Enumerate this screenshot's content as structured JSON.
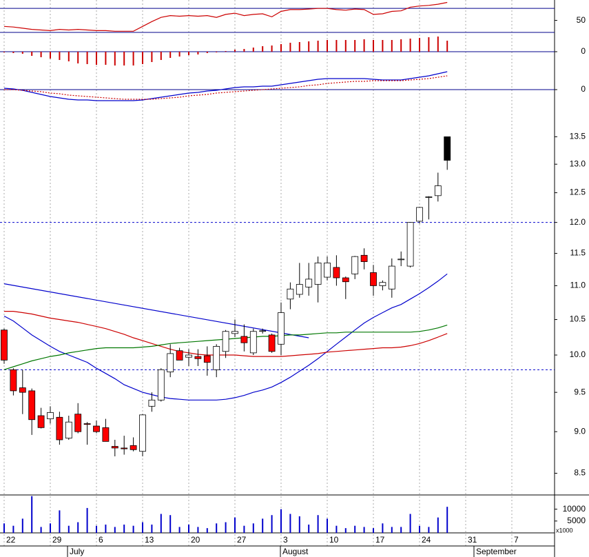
{
  "chart_data": [
    {
      "type": "line",
      "ylim": [
        30,
        84
      ],
      "yticks": [
        50
      ],
      "hlines": [
        70,
        30
      ],
      "hline_color": "#00008b",
      "series": [
        {
          "color": "#cc0000",
          "values": [
            40,
            39,
            37,
            35,
            34,
            33,
            35,
            34,
            35,
            34,
            33,
            33,
            32,
            32,
            32,
            40,
            48,
            55,
            58,
            57,
            58,
            57,
            58,
            55,
            60,
            62,
            58,
            60,
            61,
            56,
            65,
            68,
            68,
            69,
            70,
            70,
            68,
            67,
            69,
            68,
            60,
            61,
            65,
            66,
            72,
            74,
            75,
            77,
            80
          ]
        }
      ]
    },
    {
      "type": "bar",
      "ylim": [
        -0.25,
        0.28
      ],
      "yticks": [
        0
      ],
      "hlines": [
        0
      ],
      "hline_color": "#00008b",
      "color": "#cc0000",
      "values": [
        -0.01,
        -0.02,
        -0.03,
        -0.06,
        -0.08,
        -0.1,
        -0.12,
        -0.14,
        -0.17,
        -0.18,
        -0.19,
        -0.19,
        -0.2,
        -0.2,
        -0.2,
        -0.18,
        -0.15,
        -0.12,
        -0.09,
        -0.07,
        -0.05,
        -0.04,
        -0.02,
        -0.01,
        0.01,
        0.03,
        0.04,
        0.06,
        0.08,
        0.09,
        0.11,
        0.13,
        0.14,
        0.15,
        0.16,
        0.17,
        0.17,
        0.17,
        0.17,
        0.18,
        0.17,
        0.17,
        0.17,
        0.18,
        0.19,
        0.2,
        0.21,
        0.22,
        0.16
      ]
    },
    {
      "type": "line",
      "ylim": [
        -0.3,
        0.3
      ],
      "yticks": [
        0
      ],
      "hlines": [
        0
      ],
      "hline_color": "#00008b",
      "series": [
        {
          "color": "#0000cc",
          "values": [
            0.02,
            0.01,
            -0.01,
            -0.04,
            -0.07,
            -0.1,
            -0.12,
            -0.14,
            -0.15,
            -0.15,
            -0.16,
            -0.16,
            -0.16,
            -0.16,
            -0.16,
            -0.15,
            -0.13,
            -0.11,
            -0.09,
            -0.07,
            -0.05,
            -0.04,
            -0.02,
            -0.01,
            0.01,
            0.03,
            0.04,
            0.04,
            0.05,
            0.05,
            0.07,
            0.09,
            0.11,
            0.13,
            0.15,
            0.16,
            0.16,
            0.16,
            0.16,
            0.16,
            0.15,
            0.14,
            0.14,
            0.14,
            0.16,
            0.18,
            0.2,
            0.23,
            0.26
          ]
        },
        {
          "color": "#cc0000",
          "dash": true,
          "values": [
            0,
            0,
            -0.01,
            -0.02,
            -0.03,
            -0.05,
            -0.06,
            -0.08,
            -0.09,
            -0.1,
            -0.11,
            -0.12,
            -0.13,
            -0.14,
            -0.14,
            -0.14,
            -0.14,
            -0.13,
            -0.12,
            -0.11,
            -0.09,
            -0.08,
            -0.07,
            -0.05,
            -0.04,
            -0.03,
            -0.02,
            -0.01,
            0,
            0.01,
            0.02,
            0.03,
            0.04,
            0.06,
            0.07,
            0.09,
            0.1,
            0.11,
            0.12,
            0.12,
            0.13,
            0.13,
            0.13,
            0.13,
            0.14,
            0.15,
            0.16,
            0.18,
            0.2
          ]
        }
      ]
    },
    {
      "type": "candlestick",
      "log_scale": true,
      "ylim": [
        8.25,
        14.0
      ],
      "yticks": [
        13.5,
        {
          "value": 13,
          "label": "13.0"
        },
        12.5,
        {
          "value": 12,
          "label": "12.0"
        },
        11.5,
        {
          "value": 11,
          "label": "11.0"
        },
        10.5,
        {
          "value": 10,
          "label": "10.0"
        },
        9.5,
        {
          "value": 9,
          "label": "9.0"
        },
        8.5
      ],
      "hlines": [
        12,
        9.8
      ],
      "hline_color": "#0000cc",
      "hline_dash": true,
      "up_color": "#ffffff",
      "down_color": "#ff0000",
      "last_color": "#000000",
      "open": [
        10.35,
        9.8,
        9.56,
        9.52,
        9.2,
        9.16,
        9.18,
        8.92,
        9.22,
        9.1,
        9.07,
        9.05,
        8.82,
        8.8,
        8.83,
        8.76,
        9.32,
        9.4,
        9.77,
        10.06,
        9.97,
        9.98,
        9.99,
        9.8,
        10.05,
        10.3,
        10.26,
        10.03,
        10.33,
        10.28,
        10.15,
        10.8,
        10.87,
        10.98,
        11.02,
        11.13,
        11.28,
        11.12,
        11.18,
        11.47,
        11.2,
        11.0,
        10.95,
        11.4,
        11.3,
        12.02,
        12.42,
        12.45,
        13.5
      ],
      "high": [
        10.37,
        9.82,
        9.8,
        9.55,
        9.3,
        9.32,
        9.25,
        9.2,
        9.36,
        9.12,
        9.14,
        9.16,
        8.9,
        8.95,
        8.93,
        9.22,
        9.5,
        9.82,
        10.15,
        10.1,
        10.08,
        10.08,
        10.12,
        10.15,
        10.35,
        10.5,
        10.43,
        10.37,
        10.37,
        10.3,
        10.75,
        11.05,
        11.35,
        11.35,
        11.45,
        11.45,
        11.47,
        11.14,
        11.46,
        11.58,
        11.32,
        11.08,
        11.42,
        11.53,
        12.0,
        12.26,
        12.44,
        12.85,
        13.5
      ],
      "low": [
        9.88,
        9.46,
        9.22,
        8.96,
        9.04,
        9.1,
        8.84,
        8.9,
        8.98,
        8.84,
        8.98,
        8.88,
        8.7,
        8.72,
        8.76,
        8.7,
        9.25,
        9.38,
        9.7,
        9.93,
        9.85,
        9.85,
        9.72,
        9.7,
        9.96,
        10.25,
        10.05,
        10.0,
        10.3,
        10.03,
        10.0,
        10.65,
        10.82,
        10.85,
        10.75,
        11.08,
        11.0,
        10.8,
        11.1,
        11.25,
        10.85,
        10.93,
        10.82,
        11.3,
        11.28,
        11.98,
        12.05,
        12.35,
        12.9
      ],
      "close": [
        9.93,
        9.52,
        9.5,
        9.15,
        9.05,
        9.24,
        8.9,
        9.12,
        9.0,
        9.09,
        9.0,
        8.88,
        8.8,
        8.79,
        8.78,
        9.21,
        9.4,
        9.8,
        10.02,
        9.93,
        10.0,
        9.95,
        9.9,
        10.12,
        10.33,
        10.33,
        10.17,
        10.33,
        10.34,
        10.05,
        10.6,
        10.95,
        11.02,
        11.1,
        11.35,
        11.35,
        11.12,
        11.06,
        11.45,
        11.37,
        11.0,
        11.05,
        11.3,
        11.41,
        12.0,
        12.25,
        12.43,
        12.62,
        13.07
      ],
      "trendline": {
        "color": "#0000cc",
        "x": [
          0,
          33
        ],
        "values": [
          11.03,
          10.24
        ]
      },
      "series": [
        {
          "color": "#0000cc",
          "values": [
            10.55,
            10.48,
            10.38,
            10.28,
            10.2,
            10.12,
            10.05,
            10.0,
            9.95,
            9.9,
            9.82,
            9.75,
            9.68,
            9.6,
            9.55,
            9.5,
            9.47,
            9.44,
            9.42,
            9.41,
            9.4,
            9.4,
            9.4,
            9.4,
            9.41,
            9.43,
            9.46,
            9.5,
            9.53,
            9.57,
            9.63,
            9.7,
            9.78,
            9.86,
            9.95,
            10.05,
            10.15,
            10.25,
            10.35,
            10.45,
            10.53,
            10.6,
            10.67,
            10.72,
            10.8,
            10.88,
            10.97,
            11.07,
            11.18
          ]
        },
        {
          "color": "#cc0000",
          "values": [
            10.62,
            10.62,
            10.6,
            10.58,
            10.55,
            10.52,
            10.5,
            10.48,
            10.46,
            10.43,
            10.4,
            10.37,
            10.33,
            10.29,
            10.24,
            10.2,
            10.16,
            10.12,
            10.08,
            10.05,
            10.03,
            10.01,
            10.0,
            10.0,
            10.0,
            10.0,
            9.99,
            9.98,
            9.98,
            9.98,
            9.98,
            9.99,
            10.0,
            10.01,
            10.02,
            10.04,
            10.05,
            10.06,
            10.07,
            10.08,
            10.09,
            10.1,
            10.1,
            10.11,
            10.13,
            10.16,
            10.2,
            10.25,
            10.3
          ]
        },
        {
          "color": "#007700",
          "values": [
            9.8,
            9.84,
            9.88,
            9.92,
            9.95,
            9.98,
            10.0,
            10.03,
            10.05,
            10.07,
            10.09,
            10.1,
            10.1,
            10.1,
            10.1,
            10.11,
            10.12,
            10.14,
            10.16,
            10.17,
            10.18,
            10.19,
            10.2,
            10.21,
            10.22,
            10.23,
            10.24,
            10.25,
            10.26,
            10.26,
            10.27,
            10.28,
            10.28,
            10.29,
            10.3,
            10.31,
            10.31,
            10.32,
            10.32,
            10.32,
            10.32,
            10.32,
            10.32,
            10.32,
            10.32,
            10.33,
            10.35,
            10.38,
            10.42
          ]
        }
      ]
    },
    {
      "type": "bar",
      "ylim": [
        0,
        16000
      ],
      "yticks": [
        10000,
        5000
      ],
      "unit_label": "x1000",
      "color": "#0000cc",
      "categories": [
        "22",
        null,
        null,
        null,
        null,
        "29",
        null,
        null,
        null,
        null,
        "6",
        null,
        null,
        null,
        null,
        "13",
        null,
        null,
        null,
        null,
        "20",
        null,
        null,
        null,
        null,
        "27",
        null,
        null,
        null,
        null,
        "3",
        null,
        null,
        null,
        null,
        "10",
        null,
        null,
        null,
        null,
        "17",
        null,
        null,
        null,
        null,
        "24",
        null,
        null,
        null,
        null,
        "31",
        null,
        null,
        null,
        null,
        "7",
        null,
        null,
        null
      ],
      "months": [
        "July",
        "August",
        "September"
      ],
      "values": [
        4000,
        3000,
        6000,
        15500,
        2500,
        4000,
        9500,
        3000,
        4500,
        10500,
        3000,
        3500,
        2500,
        3500,
        3000,
        4500,
        3500,
        8000,
        7500,
        2500,
        3500,
        2500,
        2000,
        4000,
        4500,
        6500,
        3000,
        4000,
        6000,
        7500,
        10000,
        8000,
        7000,
        3500,
        7500,
        6000,
        3000,
        2000,
        3000,
        2500,
        2000,
        4000,
        2500,
        2500,
        8000,
        3000,
        2500,
        6500,
        11000,
        null,
        null,
        null,
        null,
        null,
        null,
        null,
        null,
        null,
        null
      ]
    }
  ]
}
